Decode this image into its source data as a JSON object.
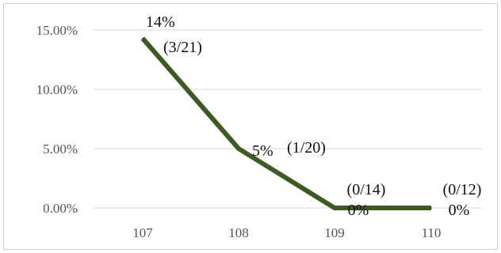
{
  "chart_data": {
    "type": "line",
    "x": [
      "107",
      "108",
      "109",
      "110"
    ],
    "values": [
      14.29,
      5.0,
      0.0,
      0.0
    ],
    "data_labels": [
      {
        "pct": "14%",
        "frac": "(3/21)"
      },
      {
        "pct": "5%",
        "frac": "(1/20)"
      },
      {
        "pct": "0%",
        "frac": "(0/14)"
      },
      {
        "pct": "0%",
        "frac": "(0/12)"
      }
    ],
    "y_ticks": [
      {
        "value": 0,
        "label": "0.00%"
      },
      {
        "value": 5,
        "label": "5.00%"
      },
      {
        "value": 10,
        "label": "10.00%"
      },
      {
        "value": 15,
        "label": "15.00%"
      }
    ],
    "ylim": [
      0,
      15
    ],
    "grid": true,
    "title": "",
    "xlabel": "",
    "ylabel": "",
    "colors": {
      "line": "#3d5a23",
      "grid": "#d9d9d9",
      "border": "#d0d0d0"
    }
  }
}
